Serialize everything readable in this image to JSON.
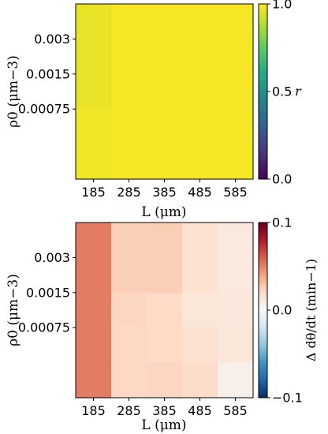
{
  "chart_data": [
    {
      "type": "heatmap",
      "x_categories": [
        "185",
        "285",
        "385",
        "485",
        "585"
      ],
      "y_tick_labels": [
        "0.003",
        "0.0015",
        "0.00075"
      ],
      "xlabel": "L (μm)",
      "ylabel": "ρ0 (μm−3)",
      "colorbar": {
        "label": "r",
        "colormap": "viridis",
        "range": [
          0.0,
          1.0
        ],
        "tick_labels": [
          "0.0",
          "0.5",
          "1.0"
        ],
        "tick_values": [
          0.0,
          0.5,
          1.0
        ]
      },
      "values": [
        [
          0.97,
          0.99,
          0.99,
          0.99,
          0.99
        ],
        [
          0.97,
          0.99,
          0.99,
          0.99,
          0.99
        ],
        [
          0.97,
          0.99,
          0.99,
          0.99,
          0.99
        ],
        [
          0.98,
          0.99,
          0.99,
          0.99,
          0.99
        ],
        [
          0.98,
          0.99,
          0.99,
          0.99,
          0.99
        ]
      ]
    },
    {
      "type": "heatmap",
      "x_categories": [
        "185",
        "285",
        "385",
        "485",
        "585"
      ],
      "y_tick_labels": [
        "0.003",
        "0.0015",
        "0.00075"
      ],
      "xlabel": "L (μm)",
      "ylabel": "ρ0 (μm−3)",
      "colorbar": {
        "label": "Δ dθ/dt (min−1)",
        "colormap": "RdBu_r",
        "range": [
          -0.1,
          0.1
        ],
        "tick_labels": [
          "−0.1",
          "0.0",
          "0.1"
        ],
        "tick_values": [
          -0.1,
          0.0,
          0.1
        ]
      },
      "values": [
        [
          0.052,
          0.024,
          0.025,
          0.016,
          0.01
        ],
        [
          0.052,
          0.024,
          0.025,
          0.016,
          0.01
        ],
        [
          0.052,
          0.022,
          0.02,
          0.012,
          0.011
        ],
        [
          0.052,
          0.021,
          0.02,
          0.016,
          0.012
        ],
        [
          0.052,
          0.021,
          0.022,
          0.019,
          0.006
        ]
      ]
    }
  ]
}
